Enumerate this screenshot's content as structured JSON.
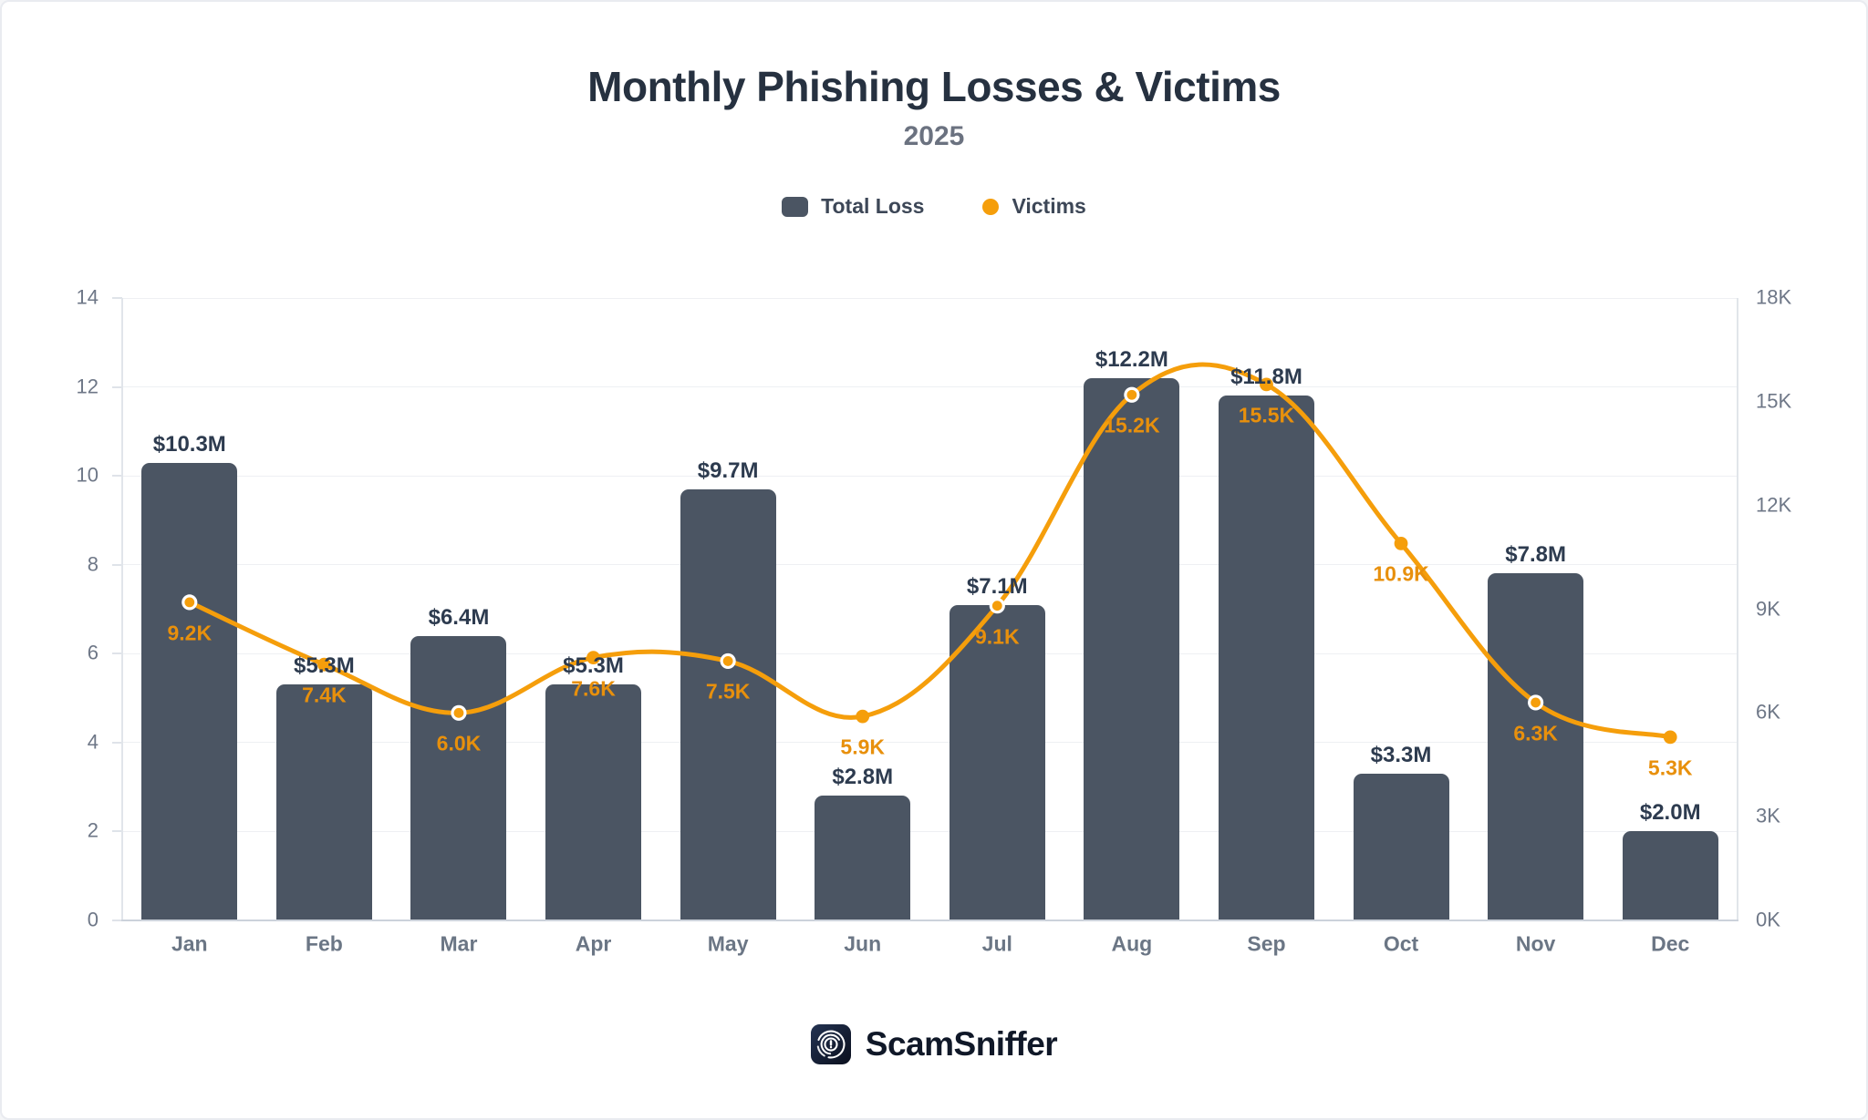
{
  "header": {
    "title": "Monthly Phishing Losses & Victims",
    "subtitle": "2025"
  },
  "legend": {
    "items": [
      {
        "label": "Total Loss",
        "swatch": "bar-square",
        "color": "#4b5563"
      },
      {
        "label": "Victims",
        "swatch": "dot",
        "color": "#f59e0b"
      }
    ]
  },
  "footer": {
    "brand": "ScamSniffer"
  },
  "chart_data": {
    "type": "combo",
    "title": "Monthly Phishing Losses & Victims",
    "subtitle": "2025",
    "legend_position": "top",
    "grid": "horizontal-left-axis-only",
    "categories": [
      "Jan",
      "Feb",
      "Mar",
      "Apr",
      "May",
      "Jun",
      "Jul",
      "Aug",
      "Sep",
      "Oct",
      "Nov",
      "Dec"
    ],
    "series": [
      {
        "name": "Total Loss",
        "type": "bar",
        "axis": "left",
        "unit": "USD millions",
        "color": "#4b5563",
        "label_color": "#2d3b4f",
        "values": [
          10.3,
          5.3,
          6.4,
          5.3,
          9.7,
          2.8,
          7.1,
          12.2,
          11.8,
          3.3,
          7.8,
          2.0
        ],
        "labels": [
          "$10.3M",
          "$5.3M",
          "$6.4M",
          "$5.3M",
          "$9.7M",
          "$2.8M",
          "$7.1M",
          "$12.2M",
          "$11.8M",
          "$3.3M",
          "$7.8M",
          "$2.0M"
        ]
      },
      {
        "name": "Victims",
        "type": "line",
        "axis": "right",
        "unit": "thousands",
        "color": "#f59e0b",
        "label_color": "#e8900c",
        "values": [
          9.2,
          7.4,
          6.0,
          7.6,
          7.5,
          5.9,
          9.1,
          15.2,
          15.5,
          10.9,
          6.3,
          5.3
        ],
        "labels": [
          "9.2K",
          "7.4K",
          "6.0K",
          "7.6K",
          "7.5K",
          "5.9K",
          "9.1K",
          "15.2K",
          "15.5K",
          "10.9K",
          "6.3K",
          "5.3K"
        ],
        "ring": [
          true,
          false,
          true,
          false,
          true,
          false,
          true,
          true,
          false,
          false,
          true,
          false
        ]
      }
    ],
    "axes": {
      "left": {
        "min": 0,
        "max": 14,
        "ticks": [
          0,
          2,
          4,
          6,
          8,
          10,
          12,
          14
        ],
        "tick_labels": [
          "0",
          "2",
          "4",
          "6",
          "8",
          "10",
          "12",
          "14"
        ]
      },
      "right": {
        "min": 0,
        "max": 18,
        "ticks": [
          0,
          3,
          6,
          9,
          12,
          15,
          18
        ],
        "tick_labels": [
          "0K",
          "3K",
          "6K",
          "9K",
          "12K",
          "15K",
          "18K"
        ]
      }
    }
  }
}
